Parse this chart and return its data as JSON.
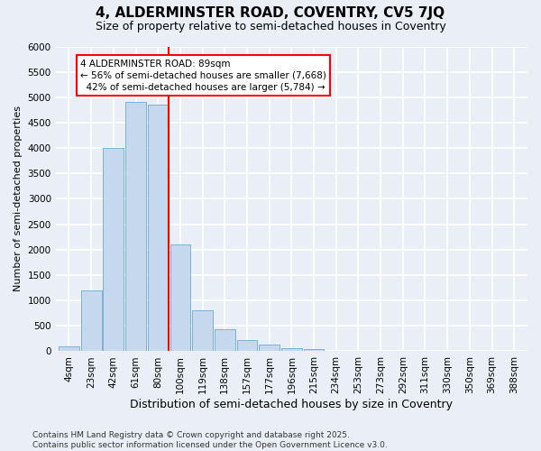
{
  "title1": "4, ALDERMINSTER ROAD, COVENTRY, CV5 7JQ",
  "title2": "Size of property relative to semi-detached houses in Coventry",
  "xlabel": "Distribution of semi-detached houses by size in Coventry",
  "ylabel": "Number of semi-detached properties",
  "bar_labels": [
    "4sqm",
    "23sqm",
    "42sqm",
    "61sqm",
    "80sqm",
    "100sqm",
    "119sqm",
    "138sqm",
    "157sqm",
    "177sqm",
    "196sqm",
    "215sqm",
    "234sqm",
    "253sqm",
    "273sqm",
    "292sqm",
    "311sqm",
    "330sqm",
    "350sqm",
    "369sqm",
    "388sqm"
  ],
  "bar_values": [
    100,
    1200,
    4000,
    4900,
    4850,
    2100,
    800,
    430,
    230,
    130,
    70,
    50,
    0,
    0,
    0,
    0,
    0,
    0,
    0,
    0,
    0
  ],
  "bar_color": "#c5d8ed",
  "bar_edgecolor": "#6aaad4",
  "vline_color": "red",
  "annotation_text": "4 ALDERMINSTER ROAD: 89sqm\n← 56% of semi-detached houses are smaller (7,668)\n  42% of semi-detached houses are larger (5,784) →",
  "annotation_box_color": "white",
  "annotation_box_edgecolor": "red",
  "ylim": [
    0,
    6000
  ],
  "yticks": [
    0,
    500,
    1000,
    1500,
    2000,
    2500,
    3000,
    3500,
    4000,
    4500,
    5000,
    5500,
    6000
  ],
  "footnote": "Contains HM Land Registry data © Crown copyright and database right 2025.\nContains public sector information licensed under the Open Government Licence v3.0.",
  "bg_color": "#eaeff7",
  "grid_color": "white",
  "title1_fontsize": 11,
  "title2_fontsize": 9,
  "xlabel_fontsize": 9,
  "ylabel_fontsize": 8,
  "tick_fontsize": 7.5,
  "footnote_fontsize": 6.5,
  "annotation_fontsize": 7.5
}
